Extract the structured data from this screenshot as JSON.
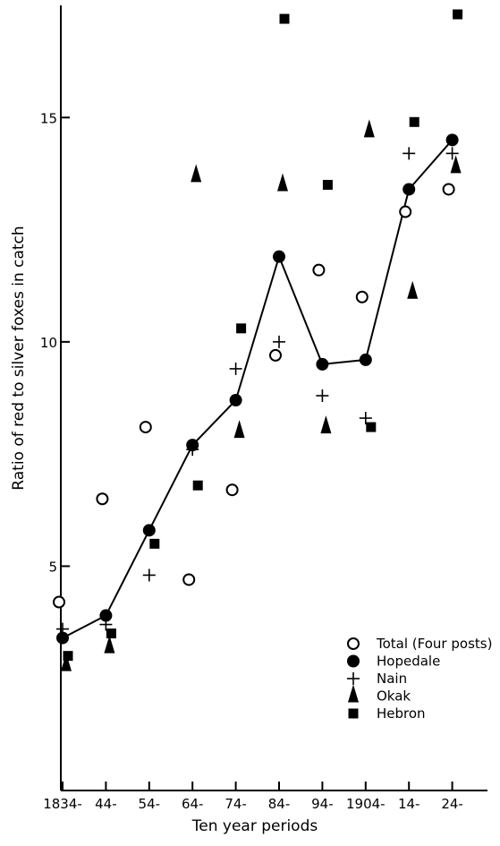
{
  "chart_data": {
    "type": "scatter",
    "title": "",
    "xlabel": "Ten year periods",
    "ylabel": "Ratio of red to silver foxes in catch",
    "categories": [
      "1834-",
      "44-",
      "54-",
      "64-",
      "74-",
      "84-",
      "94-",
      "1904-",
      "14-",
      "24-"
    ],
    "ylim": [
      0,
      17.5
    ],
    "yticks": [
      5,
      10,
      15
    ],
    "grid": false,
    "legend_position": "bottom-right",
    "series": [
      {
        "name": "Total (Four posts)",
        "marker": "open-circle",
        "line": false,
        "values": [
          4.2,
          6.5,
          8.1,
          4.7,
          6.7,
          9.7,
          11.6,
          11.0,
          12.9,
          13.4
        ]
      },
      {
        "name": "Hopedale",
        "marker": "filled-circle",
        "line": true,
        "values": [
          3.4,
          3.9,
          5.8,
          7.7,
          8.7,
          11.9,
          9.5,
          9.6,
          13.4,
          14.5
        ]
      },
      {
        "name": "Nain",
        "marker": "plus",
        "line": false,
        "values": [
          3.6,
          3.7,
          4.8,
          7.6,
          9.4,
          10.0,
          8.8,
          8.3,
          14.2,
          14.2
        ]
      },
      {
        "name": "Okak",
        "marker": "filled-triangle",
        "line": false,
        "values": [
          2.8,
          3.2,
          null,
          13.7,
          8.0,
          13.5,
          8.1,
          14.7,
          11.1,
          13.9
        ]
      },
      {
        "name": "Hebron",
        "marker": "filled-square",
        "line": false,
        "values": [
          3.0,
          3.5,
          5.5,
          6.8,
          10.3,
          17.2,
          13.5,
          8.1,
          14.9,
          17.3
        ]
      }
    ]
  }
}
